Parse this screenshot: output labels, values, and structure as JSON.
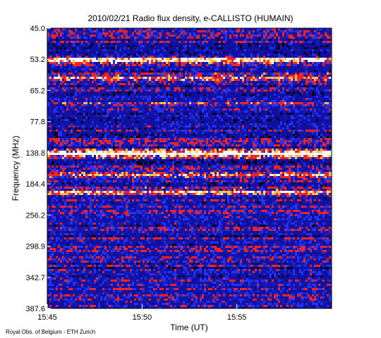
{
  "chart_data": {
    "type": "heatmap",
    "title": "2010/02/21  Radio flux density, e-CALLISTO (HUMAIN)",
    "xlabel": "Time (UT)",
    "ylabel": "Frequency (MHz)",
    "footer": "Royal Obs. of Belgium - ETH Zurich",
    "x_ticks": [
      "15:45",
      "15:50",
      "15:55"
    ],
    "y_ticks": [
      "45.0",
      "53.2",
      "65.2",
      "77.8",
      "138.8",
      "184.4",
      "256.2",
      "298.9",
      "342.7",
      "387.6"
    ],
    "x_range_minutes": [
      0,
      15
    ],
    "grid": false,
    "legend": "none",
    "colormap": [
      "#000000",
      "#1010a0",
      "#2233ff",
      "#ff2020",
      "#ffc040",
      "#ffffff"
    ],
    "bright_bands": [
      {
        "freq_mhz": 53.2,
        "intensity": "high"
      },
      {
        "freq_mhz": 60.0,
        "intensity": "medium"
      },
      {
        "freq_mhz": 70.0,
        "intensity": "low"
      },
      {
        "freq_mhz": 138.8,
        "intensity": "very high"
      },
      {
        "freq_mhz": 170.0,
        "intensity": "medium"
      },
      {
        "freq_mhz": 200.0,
        "intensity": "medium"
      }
    ]
  }
}
